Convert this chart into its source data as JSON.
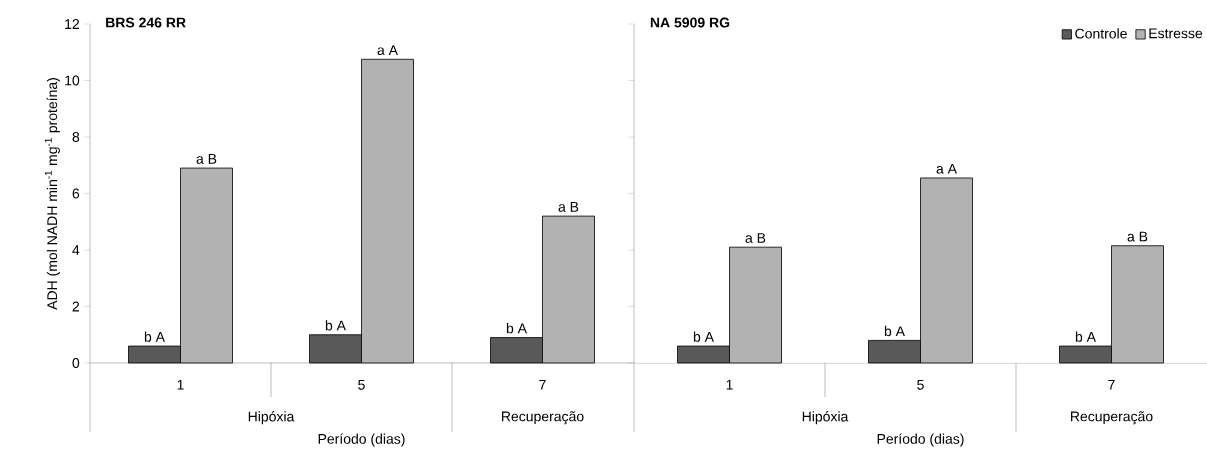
{
  "chart_data": [
    {
      "type": "bar",
      "title": "BRS 246 RR",
      "xlabel": "Período (dias)",
      "ylabel": "ADH (mol NADH min$^{-1}$ mg$^{-1}$ proteína)",
      "categories": [
        "1",
        "5",
        "7"
      ],
      "annotations": [
        "Hipóxia",
        "Recuperação"
      ],
      "ylim": [
        0,
        12
      ],
      "yticks": [
        0,
        2,
        4,
        6,
        8,
        10,
        12
      ],
      "grid": false,
      "series": [
        {
          "color": "#595959",
          "values": [
            0.6,
            1.0,
            0.9
          ],
          "value_labels": [
            "b A",
            "b A",
            "b A"
          ]
        },
        {
          "color": "#b2b2b2",
          "values": [
            6.9,
            10.75,
            5.2
          ],
          "value_labels": [
            "a B",
            "a A",
            "a B"
          ]
        }
      ]
    },
    {
      "type": "bar",
      "title": "NA 5909 RG",
      "xlabel": "Período (dias)",
      "categories": [
        "1",
        "5",
        "7"
      ],
      "annotations": [
        "Hipóxia",
        "Recuperação"
      ],
      "ylim": [
        0,
        12
      ],
      "yticks": [
        0,
        2,
        4,
        6,
        8,
        10,
        12
      ],
      "grid": false,
      "tick_labels": "x",
      "legend": "top right",
      "series": [
        {
          "name": "Controle",
          "color": "#595959",
          "values": [
            0.6,
            0.8,
            0.6
          ],
          "value_labels": [
            "b A",
            "b A",
            "b A"
          ]
        },
        {
          "name": "Estresse",
          "color": "#b2b2b2",
          "values": [
            4.1,
            6.55,
            4.15
          ],
          "value_labels": [
            "a B",
            "a A",
            "a B"
          ]
        }
      ]
    }
  ]
}
